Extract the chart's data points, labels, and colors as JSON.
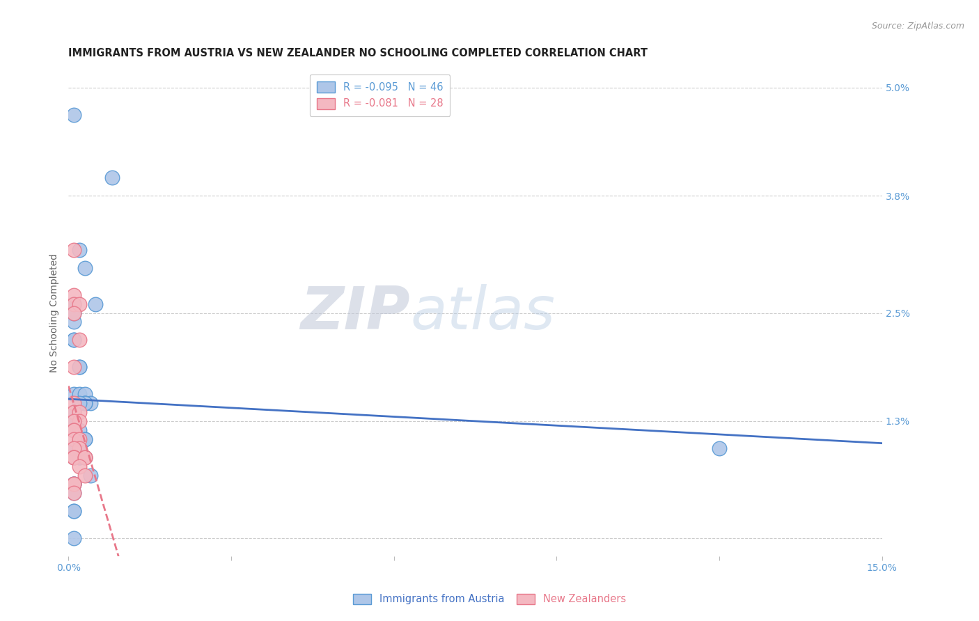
{
  "title": "IMMIGRANTS FROM AUSTRIA VS NEW ZEALANDER NO SCHOOLING COMPLETED CORRELATION CHART",
  "source": "Source: ZipAtlas.com",
  "ylabel": "No Schooling Completed",
  "xlim": [
    0.0,
    0.15
  ],
  "ylim": [
    -0.002,
    0.052
  ],
  "yticks": [
    0.0,
    0.013,
    0.025,
    0.038,
    0.05
  ],
  "ytick_labels": [
    "",
    "1.3%",
    "2.5%",
    "3.8%",
    "5.0%"
  ],
  "xticks": [
    0.0,
    0.03,
    0.06,
    0.09,
    0.12,
    0.15
  ],
  "xtick_labels": [
    "0.0%",
    "",
    "",
    "",
    "",
    "15.0%"
  ],
  "watermark_ZIP": "ZIP",
  "watermark_atlas": "atlas",
  "legend_entries": [
    {
      "label": "R = -0.095   N = 46",
      "color": "#5b9bd5"
    },
    {
      "label": "R = -0.081   N = 28",
      "color": "#e8788a"
    }
  ],
  "series": [
    {
      "name": "Immigrants from Austria",
      "line_color": "#4472c4",
      "marker_facecolor": "#aec6e8",
      "marker_edgecolor": "#5b9bd5",
      "x": [
        0.001,
        0.008,
        0.002,
        0.003,
        0.001,
        0.001,
        0.005,
        0.001,
        0.001,
        0.001,
        0.002,
        0.002,
        0.001,
        0.002,
        0.003,
        0.003,
        0.004,
        0.003,
        0.003,
        0.002,
        0.001,
        0.001,
        0.001,
        0.001,
        0.001,
        0.002,
        0.002,
        0.003,
        0.003,
        0.002,
        0.002,
        0.001,
        0.001,
        0.002,
        0.002,
        0.003,
        0.004,
        0.001,
        0.001,
        0.001,
        0.001,
        0.001,
        0.001,
        0.001,
        0.001,
        0.12
      ],
      "y": [
        0.047,
        0.04,
        0.032,
        0.03,
        0.026,
        0.026,
        0.026,
        0.024,
        0.022,
        0.022,
        0.019,
        0.019,
        0.016,
        0.016,
        0.016,
        0.015,
        0.015,
        0.015,
        0.015,
        0.015,
        0.014,
        0.014,
        0.013,
        0.013,
        0.012,
        0.012,
        0.011,
        0.011,
        0.011,
        0.01,
        0.01,
        0.01,
        0.009,
        0.009,
        0.009,
        0.009,
        0.007,
        0.006,
        0.006,
        0.006,
        0.005,
        0.003,
        0.003,
        0.0,
        0.025,
        0.01
      ],
      "line_style": "solid",
      "intercept": 0.0152,
      "slope": -0.033
    },
    {
      "name": "New Zealanders",
      "line_color": "#e8788a",
      "marker_facecolor": "#f4b8c1",
      "marker_edgecolor": "#e8788a",
      "x": [
        0.001,
        0.001,
        0.001,
        0.002,
        0.001,
        0.002,
        0.001,
        0.001,
        0.002,
        0.002,
        0.001,
        0.001,
        0.001,
        0.001,
        0.002,
        0.002,
        0.001,
        0.001,
        0.001,
        0.001,
        0.003,
        0.003,
        0.002,
        0.003,
        0.001,
        0.001,
        0.001,
        0.001
      ],
      "y": [
        0.032,
        0.027,
        0.026,
        0.026,
        0.025,
        0.022,
        0.015,
        0.014,
        0.014,
        0.013,
        0.013,
        0.012,
        0.012,
        0.011,
        0.011,
        0.01,
        0.01,
        0.009,
        0.009,
        0.009,
        0.009,
        0.009,
        0.008,
        0.007,
        0.006,
        0.006,
        0.019,
        0.005
      ],
      "line_style": "dashed",
      "intercept": 0.0138,
      "slope": -0.026
    }
  ],
  "background_color": "#ffffff",
  "grid_color": "#cccccc",
  "title_fontsize": 10.5,
  "axis_label_fontsize": 10,
  "tick_fontsize": 10,
  "tick_color": "#5b9bd5",
  "legend_fontsize": 10.5,
  "marker_size": 220
}
